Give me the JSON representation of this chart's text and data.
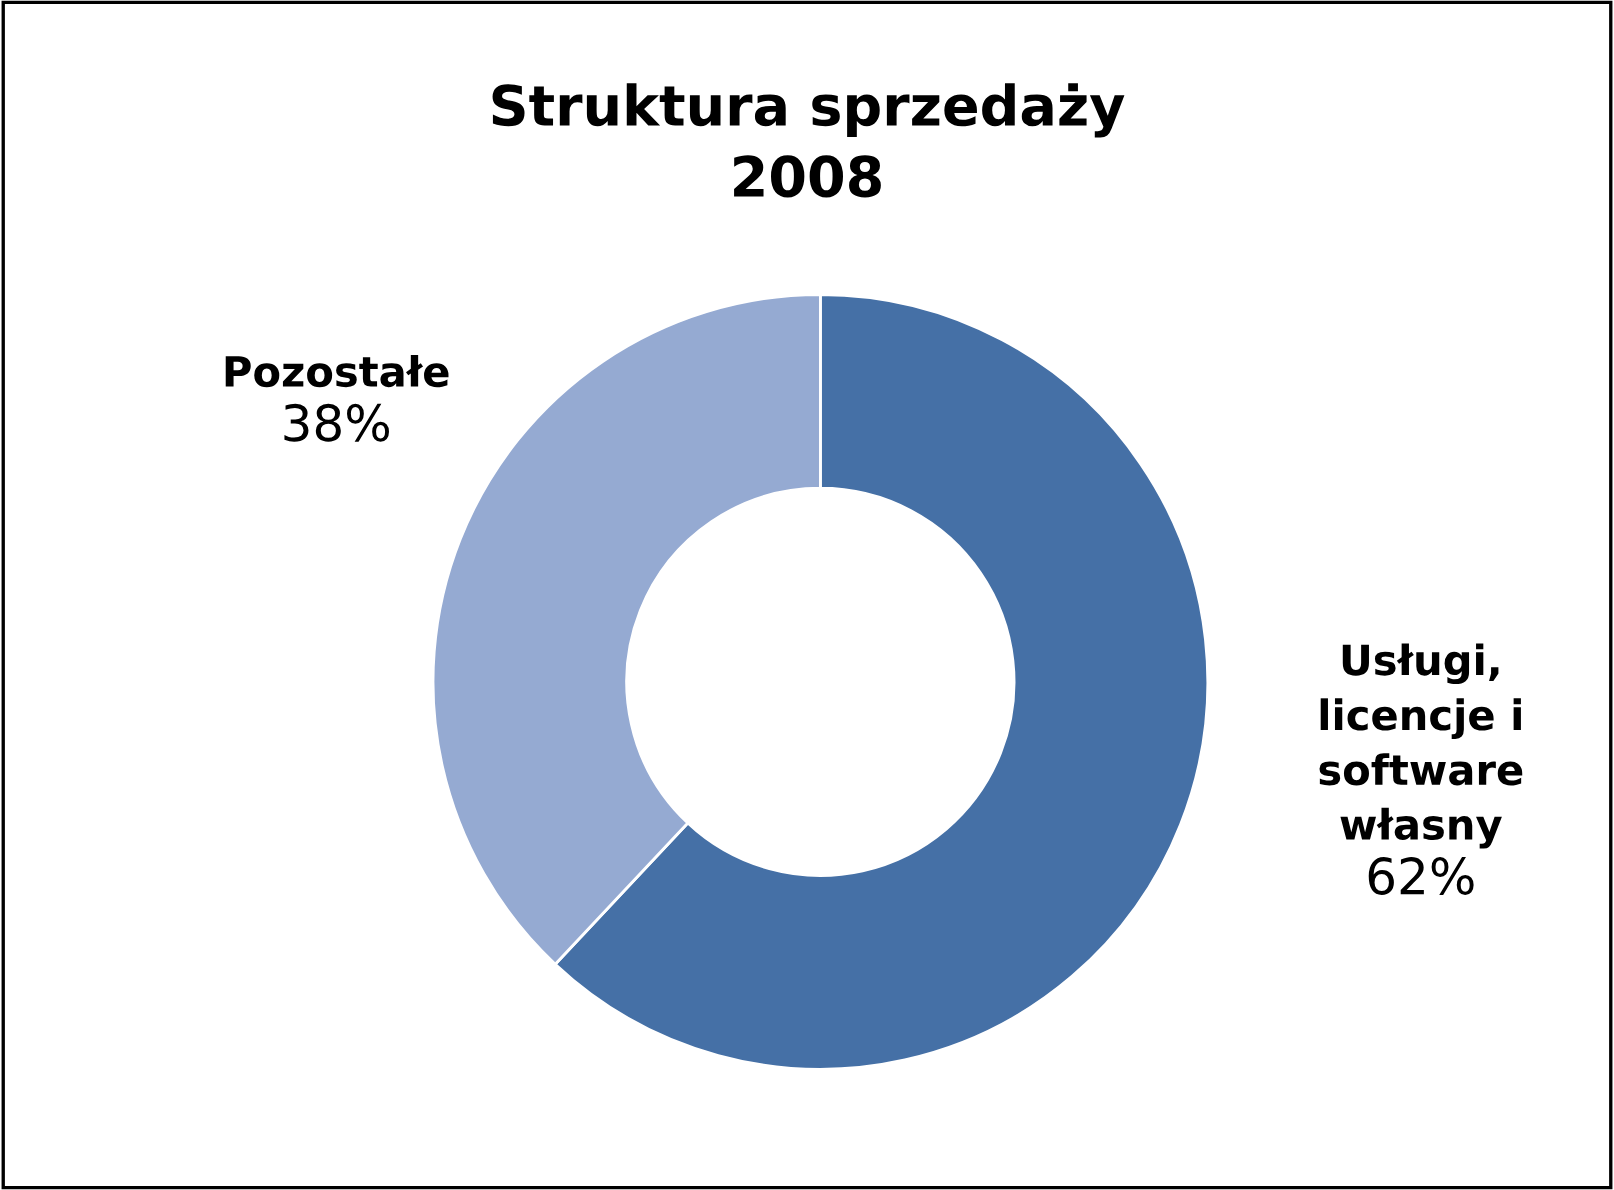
{
  "chart_data": {
    "type": "donut",
    "title": "Struktura sprzedaży\n2008",
    "categories": [
      "Usługi,\nlicencje i\nsoftware\nwłasny",
      "Pozostałe"
    ],
    "values": [
      62,
      38
    ],
    "colors": [
      "#4570a6",
      "#95aad2"
    ],
    "value_labels": [
      "62%",
      "38%"
    ],
    "legend": false
  }
}
